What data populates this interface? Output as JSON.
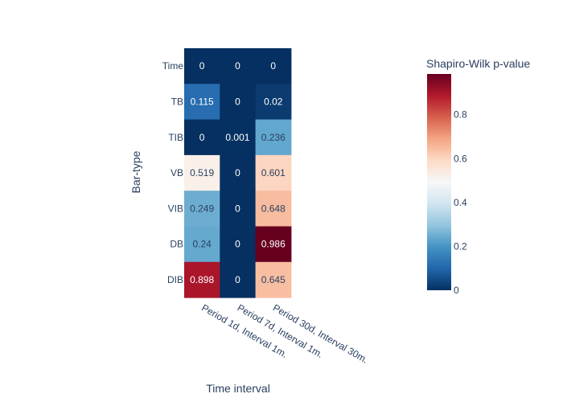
{
  "chart_data": {
    "type": "heatmap",
    "xlabel": "Time interval",
    "ylabel": "Bar-type",
    "colorbar_title": "Shapiro-Wilk p-value",
    "x_categories": [
      "Period 1d, Interval 1m.",
      "Period 7d, Interval 1m.",
      "Period 30d, Interval 30m."
    ],
    "y_categories": [
      "Time",
      "TB",
      "TIB",
      "VB",
      "VIB",
      "DB",
      "DIB"
    ],
    "z": [
      [
        0,
        0,
        0
      ],
      [
        0.115,
        0,
        0.02
      ],
      [
        0,
        0.001,
        0.236
      ],
      [
        0.519,
        0,
        0.601
      ],
      [
        0.249,
        0,
        0.648
      ],
      [
        0.24,
        0,
        0.986
      ],
      [
        0.898,
        0,
        0.645
      ]
    ],
    "zlim": [
      0,
      0.986
    ],
    "colorbar_ticks": [
      0,
      0.2,
      0.4,
      0.6,
      0.8
    ],
    "colorscale": "RdBu_r",
    "colorscale_stops": [
      [
        0,
        "#053061"
      ],
      [
        0.1,
        "#2166ac"
      ],
      [
        0.2,
        "#4393c3"
      ],
      [
        0.3,
        "#92c5de"
      ],
      [
        0.4,
        "#d1e5f0"
      ],
      [
        0.5,
        "#f7f7f7"
      ],
      [
        0.6,
        "#fddbc7"
      ],
      [
        0.7,
        "#f4a582"
      ],
      [
        0.8,
        "#d6604d"
      ],
      [
        0.9,
        "#b2182b"
      ],
      [
        1,
        "#67001f"
      ]
    ],
    "text_color_dark": "#2a3f5f",
    "text_color_light": "#ffffff"
  }
}
